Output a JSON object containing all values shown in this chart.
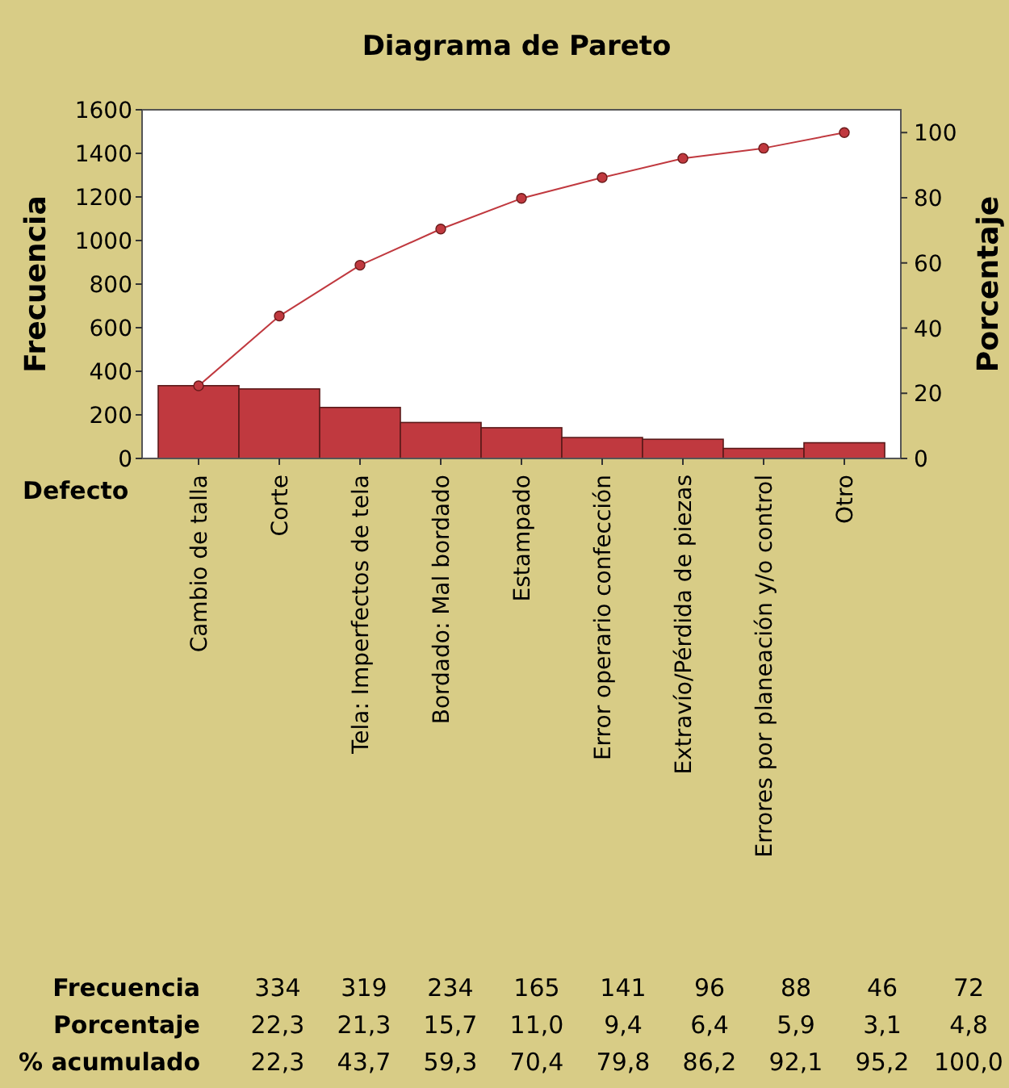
{
  "chart_data": {
    "type": "bar",
    "title": "Diagrama de Pareto",
    "xlabel": "Defecto",
    "ylabel": "Frecuencia",
    "y2label": "Porcentaje",
    "categories": [
      "Cambio de talla",
      "Corte",
      "Tela: Imperfectos de tela",
      "Bordado: Mal bordado",
      "Estampado",
      "Error operario confección",
      "Extravío/Pérdida de piezas",
      "Errores por planeación y/o control",
      "Otro"
    ],
    "series": [
      {
        "color": "#c0393f",
        "values": [
          334,
          319,
          234,
          165,
          141,
          96,
          88,
          46,
          72
        ]
      },
      {
        "type": "line",
        "axis": "y2",
        "color": "#c0393f",
        "values": [
          22.3,
          43.7,
          59.3,
          70.4,
          79.8,
          86.2,
          92.1,
          95.2,
          100.0
        ]
      }
    ],
    "annotations": [
      "Frecuencia",
      "334",
      "319",
      "234",
      "165",
      "141",
      "96",
      "88",
      "46",
      "72",
      "Porcentaje",
      "22,3",
      "21,3",
      "15,7",
      "11,0",
      "9,4",
      "6,4",
      "5,9",
      "3,1",
      "4,8",
      "% acumulado",
      "22,3",
      "43,7",
      "59,3",
      "70,4",
      "79,8",
      "86,2",
      "92,1",
      "95,2",
      "100,0"
    ],
    "ylim": [
      0,
      1600
    ],
    "yticks": [
      0,
      200,
      400,
      600,
      800,
      1000,
      1200,
      1400,
      1600
    ],
    "y2lim": [
      0,
      107
    ],
    "y2ticks": [
      0,
      20,
      40,
      60,
      80,
      100
    ],
    "marker": "circle",
    "line_style": "solid",
    "grid": false
  }
}
